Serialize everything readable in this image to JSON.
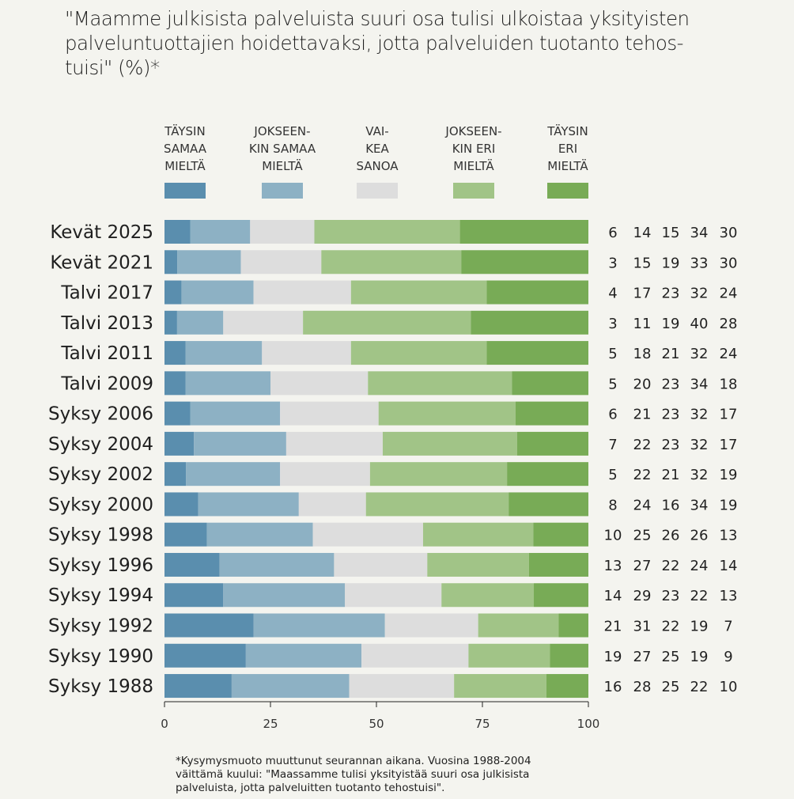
{
  "title": "\"Maamme julkisista palveluista suuri osa tulisi ulkoistaa yksityisten\n palveluntuottajien hoidettavaksi, jotta palveluiden tuotanto tehos-\n tuisi\" (%)*",
  "footnote": "*Kysymysmuoto muuttunut seurannan aikana. Vuosina 1988-2004\n väittämä kuului: \"Maassamme tulisi yksityistää suuri osa julkisista\n palveluista, jotta palveluitten tuotanto tehostuisi\".",
  "legend": [
    {
      "label": "TÄYSIN\nSAMAA\nMIELTÄ",
      "color": "#5a8eae"
    },
    {
      "label": "JOKSEEN-\nKIN SAMAA\nMIELTÄ",
      "color": "#8db1c4"
    },
    {
      "label": "VAI-\nKEA\nSANOA",
      "color": "#dddddd"
    },
    {
      "label": "JOKSEEN-\nKIN ERI\nMIELTÄ",
      "color": "#a1c487"
    },
    {
      "label": "TÄYSIN\nERI\nMIELTÄ",
      "color": "#78ab56"
    }
  ],
  "chart_data": {
    "type": "bar",
    "orientation": "horizontal-stacked-100",
    "title": "\"Maamme julkisista palveluista suuri osa tulisi ulkoistaa yksityisten palveluntuottajien hoidettavaksi, jotta palveluiden tuotanto tehostuisi\" (%)*",
    "xlabel": "",
    "ylabel": "",
    "xlim": [
      0,
      100
    ],
    "xticks": [
      "0",
      "25",
      "50",
      "75",
      "100"
    ],
    "grid": false,
    "legend_position": "top",
    "categories": [
      "Kevät 2025",
      "Kevät 2021",
      "Talvi 2017",
      "Talvi 2013",
      "Talvi 2011",
      "Talvi 2009",
      "Syksy 2006",
      "Syksy 2004",
      "Syksy 2002",
      "Syksy 2000",
      "Syksy 1998",
      "Syksy 1996",
      "Syksy 1994",
      "Syksy 1992",
      "Syksy 1990",
      "Syksy 1988"
    ],
    "series": [
      {
        "name": "Täysin samaa mieltä",
        "values": [
          6,
          3,
          4,
          3,
          5,
          5,
          6,
          7,
          5,
          8,
          10,
          13,
          14,
          21,
          19,
          16
        ]
      },
      {
        "name": "Jokseenkin samaa mieltä",
        "values": [
          14,
          15,
          17,
          11,
          18,
          20,
          21,
          22,
          22,
          24,
          25,
          27,
          29,
          31,
          27,
          28
        ]
      },
      {
        "name": "Vaikea sanoa",
        "values": [
          15,
          19,
          23,
          19,
          21,
          23,
          23,
          23,
          21,
          16,
          26,
          22,
          23,
          22,
          25,
          25
        ]
      },
      {
        "name": "Jokseenkin eri mieltä",
        "values": [
          34,
          33,
          32,
          40,
          32,
          34,
          32,
          32,
          32,
          34,
          26,
          24,
          22,
          19,
          19,
          22
        ]
      },
      {
        "name": "Täysin eri mieltä",
        "values": [
          30,
          30,
          24,
          28,
          24,
          18,
          17,
          17,
          19,
          19,
          13,
          14,
          13,
          7,
          9,
          10
        ]
      }
    ]
  }
}
